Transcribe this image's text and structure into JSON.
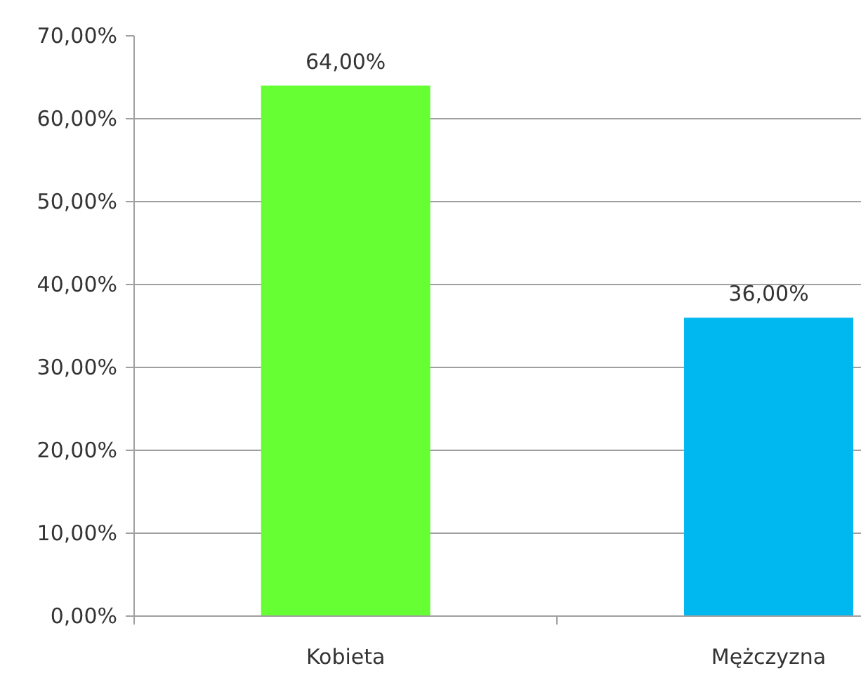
{
  "chart_data": {
    "type": "bar",
    "categories": [
      "Kobieta",
      "Mężczyzna"
    ],
    "values": [
      64,
      36
    ],
    "colors": [
      "#66ff33",
      "#00b8f0"
    ],
    "ylim": [
      0,
      70
    ],
    "yticks": [
      {
        "value": 0,
        "label": "0,00%"
      },
      {
        "value": 10,
        "label": "10,00%"
      },
      {
        "value": 20,
        "label": "20,00%"
      },
      {
        "value": 30,
        "label": "30,00%"
      },
      {
        "value": 40,
        "label": "40,00%"
      },
      {
        "value": 50,
        "label": "50,00%"
      },
      {
        "value": 60,
        "label": "60,00%"
      },
      {
        "value": 70,
        "label": "70,00%"
      }
    ],
    "grid": "y",
    "value_labels": [
      "64,00%",
      "36,00%"
    ]
  }
}
